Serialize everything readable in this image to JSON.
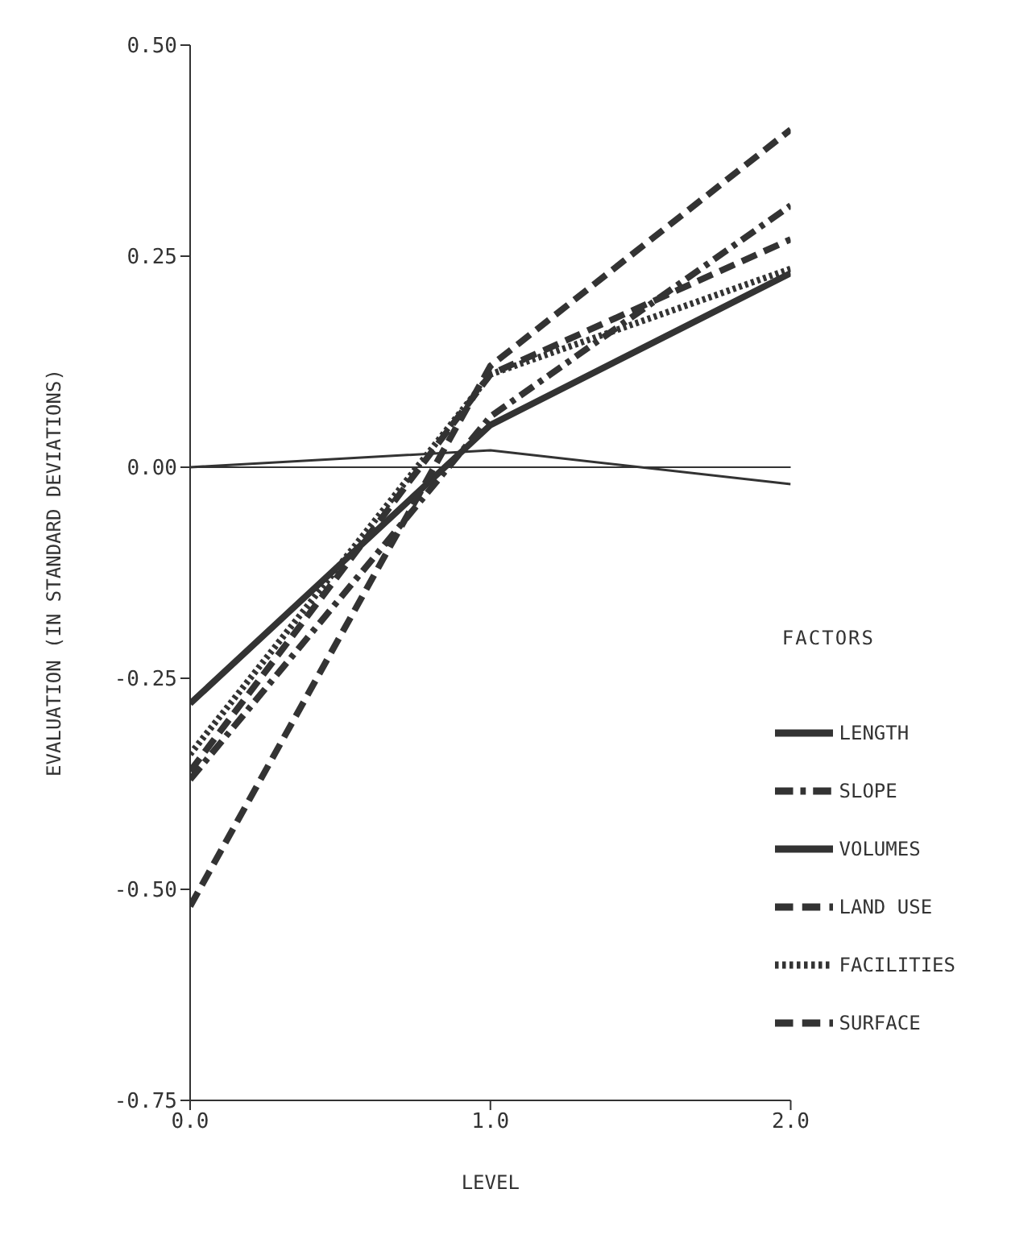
{
  "chart_data": {
    "type": "line",
    "xlabel": "LEVEL",
    "ylabel": "EVALUATION (IN STANDARD DEVIATIONS)",
    "legend_title": "FACTORS",
    "legend": "bottom right",
    "grid": false,
    "marker": "none",
    "x": [
      0,
      1,
      2
    ],
    "xlim": [
      0,
      2
    ],
    "xticks": [
      {
        "value": 0,
        "label": "0.0"
      },
      {
        "value": 1,
        "label": "1.0"
      },
      {
        "value": 2,
        "label": "2.0"
      }
    ],
    "ylim": [
      -0.75,
      0.5
    ],
    "yticks": [
      {
        "value": 0.5,
        "label": "0.50"
      },
      {
        "value": 0.25,
        "label": "0.25"
      },
      {
        "value": 0,
        "label": "0.00"
      },
      {
        "value": -0.25,
        "label": "-0.25"
      },
      {
        "value": -0.5,
        "label": "-0.50"
      },
      {
        "value": -0.75,
        "label": "-0.75"
      }
    ],
    "ref_lines": [
      {
        "axis": "y",
        "value": 0,
        "color": "#333333"
      }
    ],
    "series": [
      {
        "name": "LENGTH",
        "color": "#333333",
        "line_style": "solid",
        "values": [
          0.0,
          0.02,
          -0.02
        ]
      },
      {
        "name": "SLOPE",
        "color": "#333333",
        "line_style": "dashdot",
        "values": [
          -0.37,
          0.06,
          0.31
        ]
      },
      {
        "name": "VOLUMES",
        "color": "#333333",
        "line_style": "solid",
        "values": [
          -0.28,
          0.05,
          0.23
        ]
      },
      {
        "name": "LAND USE",
        "color": "#333333",
        "line_style": "dashed",
        "values": [
          -0.36,
          0.11,
          0.27
        ]
      },
      {
        "name": "FACILITIES",
        "color": "#333333",
        "line_style": "dotted",
        "values": [
          -0.34,
          0.11,
          0.235
        ]
      },
      {
        "name": "SURFACE",
        "color": "#333333",
        "line_style": "dashed",
        "values": [
          -0.52,
          0.12,
          0.4
        ]
      }
    ]
  }
}
